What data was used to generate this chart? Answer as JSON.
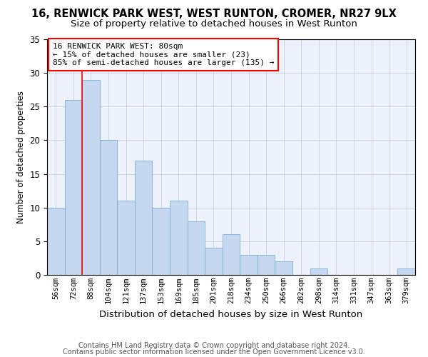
{
  "title": "16, RENWICK PARK WEST, WEST RUNTON, CROMER, NR27 9LX",
  "subtitle": "Size of property relative to detached houses in West Runton",
  "xlabel": "Distribution of detached houses by size in West Runton",
  "ylabel": "Number of detached properties",
  "categories": [
    "56sqm",
    "72sqm",
    "88sqm",
    "104sqm",
    "121sqm",
    "137sqm",
    "153sqm",
    "169sqm",
    "185sqm",
    "201sqm",
    "218sqm",
    "234sqm",
    "250sqm",
    "266sqm",
    "282sqm",
    "298sqm",
    "314sqm",
    "331sqm",
    "347sqm",
    "363sqm",
    "379sqm"
  ],
  "values": [
    10,
    26,
    29,
    20,
    11,
    17,
    10,
    11,
    8,
    4,
    6,
    3,
    3,
    2,
    0,
    1,
    0,
    0,
    0,
    0,
    1
  ],
  "bar_color": "#c5d8f0",
  "bar_edge_color": "#7aafd4",
  "red_line_x": 1.5,
  "annotation_line1": "16 RENWICK PARK WEST: 80sqm",
  "annotation_line2": "← 15% of detached houses are smaller (23)",
  "annotation_line3": "85% of semi-detached houses are larger (135) →",
  "annotation_box_color": "white",
  "annotation_border_color": "red",
  "grid_color": "#c8d0e0",
  "background_color": "#edf1f9",
  "footer1": "Contains HM Land Registry data © Crown copyright and database right 2024.",
  "footer2": "Contains public sector information licensed under the Open Government Licence v3.0.",
  "ylim_max": 35,
  "yticks": [
    0,
    5,
    10,
    15,
    20,
    25,
    30,
    35
  ]
}
